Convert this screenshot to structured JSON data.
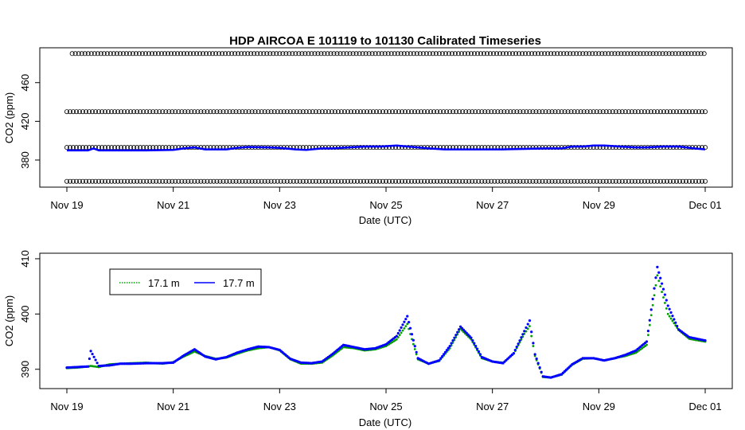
{
  "title": "HDP   AIRCOA  E    101119  to  101130   Calibrated Timeseries",
  "colors": {
    "series_17_1": "#00a000",
    "series_17_7": "#0000ff",
    "calibration_circles": "#000000",
    "axes": "#000000"
  },
  "chart_data": [
    {
      "type": "line",
      "panel": "top",
      "xlabel": "Date (UTC)",
      "ylabel": "CO2 (ppm)",
      "xlim": [
        0,
        12
      ],
      "ylim": [
        352,
        496
      ],
      "x_tick_values": [
        0,
        2,
        4,
        6,
        8,
        10,
        12
      ],
      "x_tick_labels": [
        "Nov 19",
        "Nov 21",
        "Nov 23",
        "Nov 25",
        "Nov 27",
        "Nov 29",
        "Dec 01"
      ],
      "y_tick_values": [
        380,
        420,
        460
      ],
      "y_tick_labels": [
        "380",
        "420",
        "460"
      ],
      "grid": false,
      "calibration_levels": [
        {
          "value": 358,
          "start_day": 0.0,
          "end_day": 12.0
        },
        {
          "value": 393,
          "start_day": 0.0,
          "end_day": 12.0
        },
        {
          "value": 430,
          "start_day": 0.0,
          "end_day": 12.0
        },
        {
          "value": 490,
          "start_day": 0.1,
          "end_day": 12.0
        }
      ],
      "calibration_marker": "open-circle",
      "series": [
        {
          "color_key": "series_17_7",
          "x": [
            0,
            0.4,
            0.5,
            0.6,
            1.0,
            1.5,
            2.0,
            2.2,
            2.4,
            2.6,
            3.0,
            3.2,
            3.4,
            3.8,
            4.0,
            4.3,
            4.5,
            4.8,
            5.0,
            5.3,
            5.6,
            5.9,
            6.2,
            6.5,
            6.8,
            7.1,
            7.4,
            7.8,
            8.2,
            8.6,
            9.0,
            9.3,
            9.5,
            9.7,
            9.9,
            10.1,
            10.4,
            10.7,
            10.9,
            11.2,
            11.5,
            11.8,
            12.0
          ],
          "y": [
            390,
            390,
            392,
            390,
            390,
            390,
            390.5,
            392,
            393,
            391,
            391,
            392.5,
            393.5,
            393,
            392.5,
            391,
            390.5,
            392,
            392,
            393,
            394,
            394,
            395,
            393.5,
            392,
            391,
            391,
            391,
            391,
            391.5,
            392,
            392,
            394,
            394,
            395,
            395,
            394,
            393,
            393,
            394,
            394,
            392,
            391
          ]
        }
      ]
    },
    {
      "type": "scatter",
      "panel": "bottom",
      "xlabel": "Date (UTC)",
      "ylabel": "CO2 (ppm)",
      "xlim": [
        0,
        12
      ],
      "ylim": [
        386.5,
        411
      ],
      "x_tick_values": [
        0,
        2,
        4,
        6,
        8,
        10,
        12
      ],
      "x_tick_labels": [
        "Nov 19",
        "Nov 21",
        "Nov 23",
        "Nov 25",
        "Nov 27",
        "Nov 29",
        "Dec 01"
      ],
      "y_tick_values": [
        390,
        400,
        410
      ],
      "y_tick_labels": [
        "390",
        "400",
        "410"
      ],
      "grid": false,
      "legend_position": "top-left",
      "series": [
        {
          "name": "17.1 m",
          "color_key": "series_17_1",
          "x": [
            0,
            0.2,
            0.4,
            0.45,
            0.6,
            0.8,
            1.0,
            1.2,
            1.5,
            1.8,
            2.0,
            2.2,
            2.4,
            2.6,
            2.8,
            3.0,
            3.2,
            3.4,
            3.6,
            3.8,
            4.0,
            4.2,
            4.4,
            4.6,
            4.8,
            5.0,
            5.2,
            5.4,
            5.6,
            5.8,
            6.0,
            6.2,
            6.4,
            6.6,
            6.8,
            7.0,
            7.2,
            7.4,
            7.6,
            7.8,
            8.0,
            8.2,
            8.4,
            8.6,
            8.7,
            8.8,
            8.95,
            9.1,
            9.3,
            9.5,
            9.7,
            9.9,
            10.1,
            10.3,
            10.5,
            10.7,
            10.9,
            11.1,
            11.3,
            11.5,
            11.7,
            12.0
          ],
          "y": [
            390.2,
            390.3,
            390.5,
            390.6,
            390.4,
            390.9,
            391.0,
            391.1,
            391.2,
            391.0,
            391.3,
            392.3,
            393.2,
            392.4,
            391.9,
            392.1,
            392.8,
            393.4,
            393.8,
            394.0,
            393.4,
            391.8,
            391.0,
            391.0,
            391.2,
            392.5,
            394.0,
            393.8,
            393.4,
            393.6,
            394.2,
            395.4,
            398.2,
            391.8,
            391.0,
            391.5,
            393.8,
            397.3,
            395.4,
            392.0,
            391.4,
            391.2,
            392.8,
            396.4,
            397.8,
            392.4,
            388.6,
            388.5,
            389.0,
            390.8,
            391.9,
            392.0,
            391.6,
            392.0,
            392.4,
            393.0,
            394.4,
            407.0,
            400.0,
            397.1,
            395.5,
            395.0
          ]
        },
        {
          "name": "17.7 m",
          "color_key": "series_17_7",
          "x": [
            0,
            0.2,
            0.4,
            0.45,
            0.6,
            0.8,
            1.0,
            1.2,
            1.5,
            1.8,
            2.0,
            2.2,
            2.4,
            2.6,
            2.8,
            3.0,
            3.2,
            3.4,
            3.6,
            3.8,
            4.0,
            4.2,
            4.4,
            4.6,
            4.8,
            5.0,
            5.2,
            5.4,
            5.6,
            5.8,
            6.0,
            6.2,
            6.4,
            6.6,
            6.8,
            7.0,
            7.2,
            7.4,
            7.6,
            7.8,
            8.0,
            8.2,
            8.4,
            8.6,
            8.7,
            8.8,
            8.95,
            9.1,
            9.3,
            9.5,
            9.7,
            9.9,
            10.1,
            10.3,
            10.5,
            10.7,
            10.9,
            11.1,
            11.3,
            11.5,
            11.7,
            12.0
          ],
          "y": [
            390.3,
            390.4,
            390.5,
            393.3,
            390.6,
            390.7,
            391.0,
            391.0,
            391.1,
            391.1,
            391.2,
            392.5,
            393.6,
            392.3,
            391.8,
            392.2,
            393.0,
            393.6,
            394.1,
            394.0,
            393.5,
            391.9,
            391.2,
            391.1,
            391.4,
            392.8,
            394.4,
            394.0,
            393.6,
            393.8,
            394.5,
            396.0,
            399.6,
            392.0,
            391.0,
            391.6,
            394.2,
            397.7,
            395.7,
            392.2,
            391.4,
            391.1,
            392.9,
            396.9,
            398.8,
            392.7,
            388.7,
            388.5,
            389.1,
            390.9,
            392.0,
            392.0,
            391.6,
            392.0,
            392.6,
            393.4,
            395.0,
            408.5,
            401.5,
            397.2,
            395.8,
            395.2
          ]
        }
      ]
    }
  ]
}
